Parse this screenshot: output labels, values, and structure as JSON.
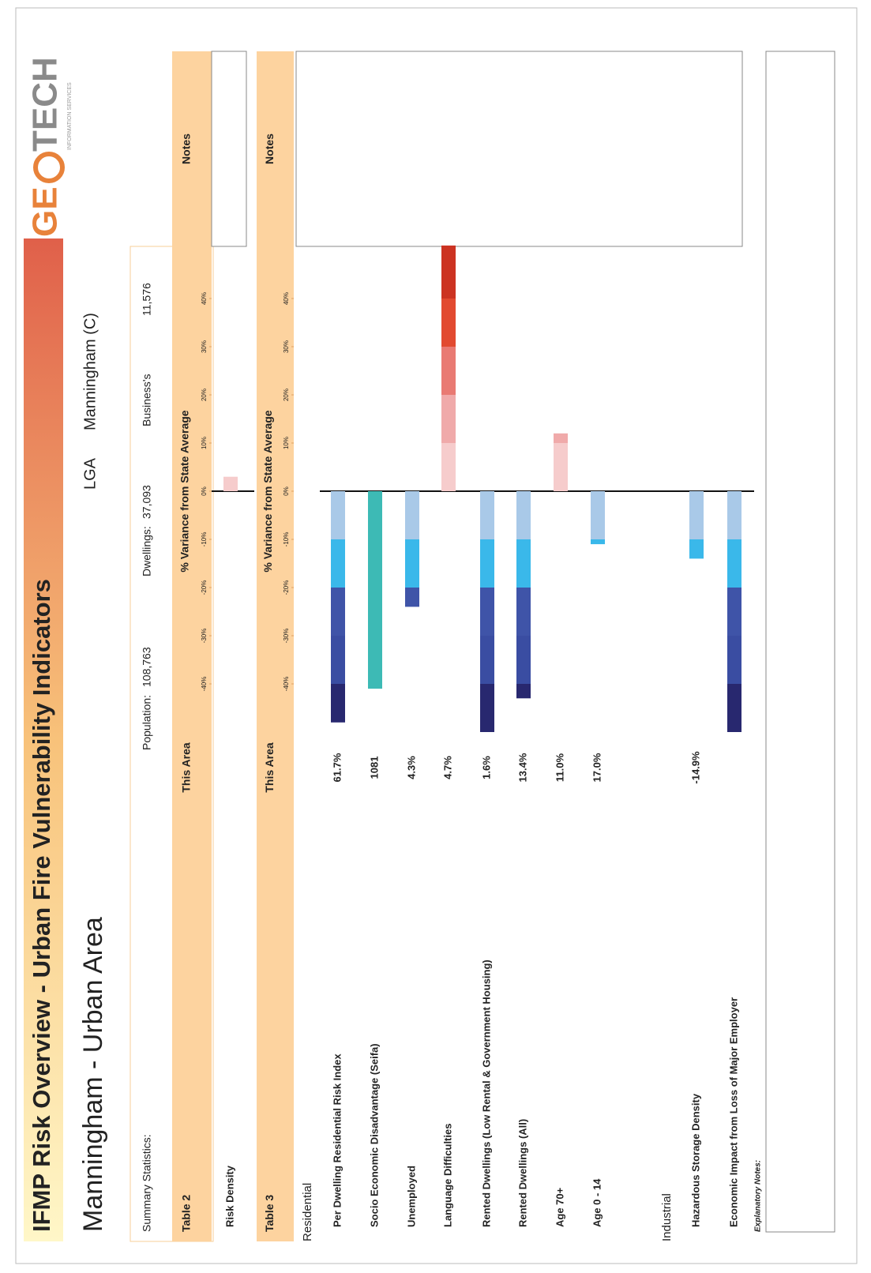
{
  "header": {
    "title": "IFMP Risk Overview - Urban Fire Vulnerability Indicators",
    "subtitle": "Manningham - Urban Area",
    "lga_label": "LGA",
    "lga_value": "Manningham (C)",
    "logo_left": "GE",
    "logo_right": "TECH",
    "logo_tagline": "INFORMATION SERVICES"
  },
  "summary": {
    "label": "Summary Statistics:",
    "population_label": "Population:",
    "population": "108,763",
    "dwellings_label": "Dwellings:",
    "dwellings": "37,093",
    "business_label": "Business's",
    "business": "11,576"
  },
  "explanatory_notes": "Explanatory Notes:",
  "chart_data": [
    {
      "type": "bar",
      "table_label": "Table 2",
      "this_area_header": "This Area",
      "x_label": "% Variance from State Average",
      "notes_header": "Notes",
      "categories": [
        "Risk Density"
      ],
      "values": [
        3
      ],
      "xlim": [
        -50,
        50
      ],
      "xticks": [
        {
          "value": -40,
          "label": "-40%"
        },
        {
          "value": -30,
          "label": "-30%"
        },
        {
          "value": -20,
          "label": "-20%"
        },
        {
          "value": -10,
          "label": "-10%"
        },
        {
          "value": 0,
          "label": "0%"
        },
        {
          "value": 10,
          "label": "10%"
        },
        {
          "value": 20,
          "label": "20%"
        },
        {
          "value": 30,
          "label": "30%"
        },
        {
          "value": 40,
          "label": "40%"
        }
      ],
      "negative_colors": [
        "#a9c9e8",
        "#3ab8ea",
        "#3f54a8",
        "#3a4da2",
        "#28286f"
      ],
      "positive_colors": [
        "#f6cccc",
        "#f0aaaa",
        "#e97a73",
        "#e24a30",
        "#cc3322"
      ]
    },
    {
      "type": "bar",
      "table_label": "Table 3",
      "this_area_header": "This Area",
      "x_label": "% Variance from State Average",
      "notes_header": "Notes",
      "categories": [
        "Residential",
        "Per Dwelling Residential Risk Index",
        "Socio Economic Disadvantage (Seifa)",
        "Unemployed",
        "Language Difficulties",
        "Rented Dwellings (Low Rental & Government Housing)",
        "Rented Dwellings (All)",
        "Age 70+",
        "Age 0 - 14",
        "Industrial",
        "Hazardous Storage Density",
        "Economic Impact from Loss of Major Employer"
      ],
      "values": [
        null,
        -48,
        -41,
        -24,
        51,
        -50,
        -43,
        12,
        -11,
        null,
        -14,
        -50
      ],
      "this_area": [
        null,
        "61.7%",
        "1081",
        "4.3%",
        "4.7%",
        "1.6%",
        "13.4%",
        "11.0%",
        "17.0%",
        null,
        "-14.9%",
        null
      ],
      "bar_colors": [
        null,
        null,
        "#3dbab5",
        null,
        null,
        null,
        null,
        null,
        null,
        null,
        null,
        null
      ],
      "xlim": [
        -50,
        50
      ],
      "xticks": [
        {
          "value": -40,
          "label": "-40%"
        },
        {
          "value": -30,
          "label": "-30%"
        },
        {
          "value": -20,
          "label": "-20%"
        },
        {
          "value": -10,
          "label": "-10%"
        },
        {
          "value": 0,
          "label": "0%"
        },
        {
          "value": 10,
          "label": "10%"
        },
        {
          "value": 20,
          "label": "20%"
        },
        {
          "value": 30,
          "label": "30%"
        },
        {
          "value": 40,
          "label": "40%"
        }
      ],
      "negative_colors": [
        "#a9c9e8",
        "#3ab8ea",
        "#3f54a8",
        "#3a4da2",
        "#28286f"
      ],
      "positive_colors": [
        "#f6cccc",
        "#f0aaaa",
        "#e97a73",
        "#e24a30",
        "#cc3322"
      ]
    }
  ]
}
